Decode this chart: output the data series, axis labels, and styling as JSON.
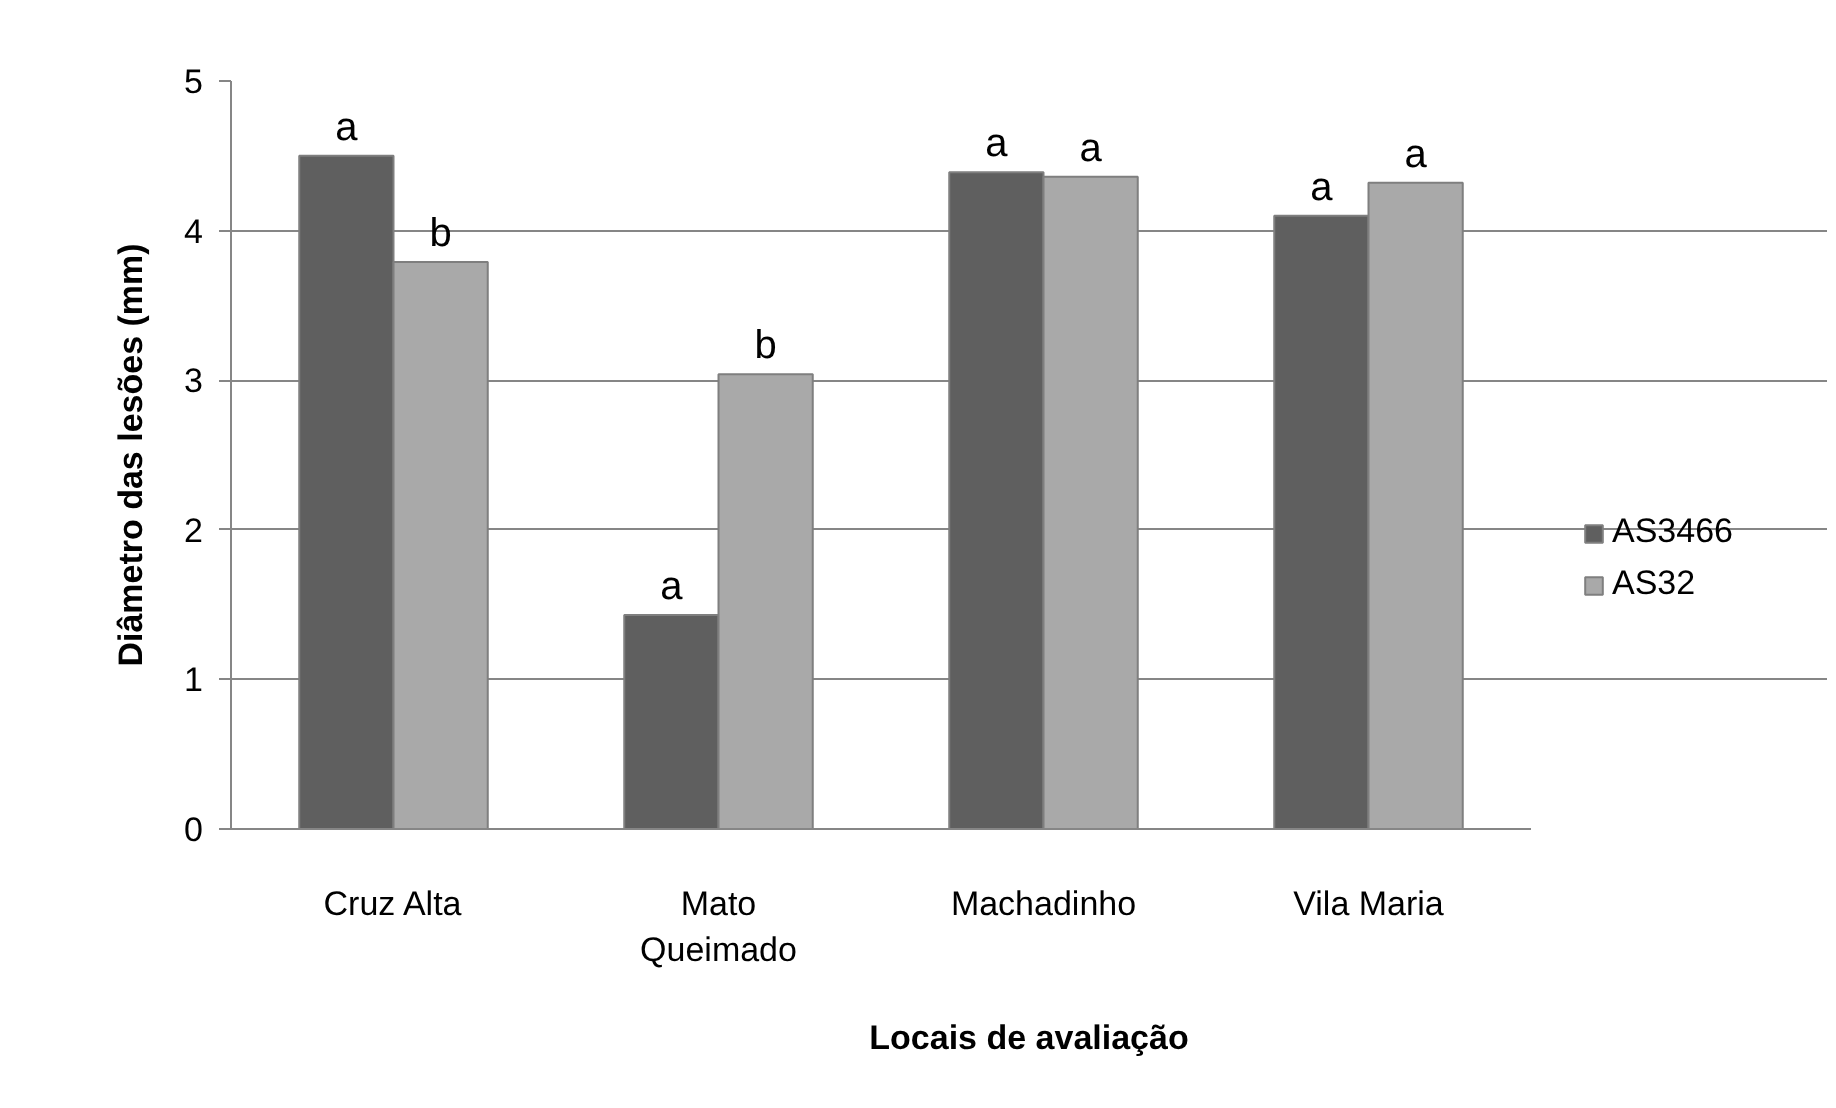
{
  "chart_data": {
    "type": "bar",
    "xlabel": "Locais de avaliação",
    "ylabel": "Diâmetro das lesões (mm)",
    "categories": [
      "Cruz Alta",
      "Mato Queimado",
      "Machadinho",
      "Vila Maria"
    ],
    "series": [
      {
        "name": "AS3466",
        "color": "#5f5f5f",
        "values": [
          4.5,
          1.43,
          4.39,
          4.1
        ]
      },
      {
        "name": "AS32",
        "color": "#a9a9a9",
        "values": [
          3.79,
          3.04,
          4.36,
          4.32
        ]
      }
    ],
    "ylim": [
      0,
      5
    ],
    "yticks": [
      0,
      1,
      2,
      3,
      4,
      5
    ],
    "grid": "y",
    "legend": "right",
    "annotations": [
      {
        "text": "a",
        "x": "Cruz Alta",
        "y": 4.5
      },
      {
        "text": "b",
        "x": "Cruz Alta",
        "y": 3.79
      },
      {
        "text": "a",
        "x": "Mato Queimado",
        "y": 1.43
      },
      {
        "text": "b",
        "x": "Mato Queimado",
        "y": 3.04
      },
      {
        "text": "a",
        "x": "Machadinho",
        "y": 4.39
      },
      {
        "text": "a",
        "x": "Machadinho",
        "y": 4.36
      },
      {
        "text": "a",
        "x": "Vila Maria",
        "y": 4.1
      },
      {
        "text": "a",
        "x": "Vila Maria",
        "y": 4.32
      }
    ]
  }
}
